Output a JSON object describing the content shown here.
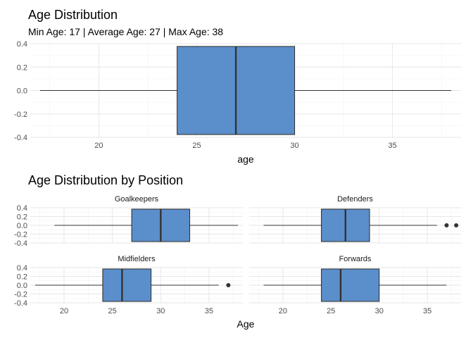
{
  "chart_data": [
    {
      "type": "boxplot",
      "title": "Age Distribution",
      "subtitle": "Min Age: 17 | Average Age: 27 | Max Age: 38",
      "xlabel": "age",
      "xlim": [
        16.5,
        38.5
      ],
      "ylim": [
        -0.4,
        0.4
      ],
      "xticks": [
        "20",
        "25",
        "30",
        "35"
      ],
      "yticks": [
        "0.4",
        "0.2",
        "0.0",
        "-0.2",
        "-0.4"
      ],
      "box": {
        "min": 17,
        "q1": 24,
        "median": 27,
        "q3": 30,
        "max": 38,
        "outliers": []
      },
      "fill": "#5B8FCB",
      "grid": true
    },
    {
      "type": "boxplot",
      "title": "Age Distribution by Position",
      "xlabel": "Age",
      "xlim": [
        16.5,
        38.5
      ],
      "ylim": [
        -0.4,
        0.4
      ],
      "xticks": [
        "20",
        "25",
        "30",
        "35"
      ],
      "yticks": [
        "0.4",
        "0.2",
        "0.0",
        "-0.2",
        "-0.4"
      ],
      "fill": "#5B8FCB",
      "grid": true,
      "facets": [
        {
          "name": "Goalkeepers",
          "min": 19,
          "q1": 27,
          "median": 30,
          "q3": 33,
          "max": 38,
          "outliers": []
        },
        {
          "name": "Defenders",
          "min": 18,
          "q1": 24,
          "median": 26.5,
          "q3": 29,
          "max": 36,
          "outliers": [
            37,
            38
          ]
        },
        {
          "name": "Midfielders",
          "min": 17,
          "q1": 24,
          "median": 26,
          "q3": 29,
          "max": 36,
          "outliers": [
            37
          ]
        },
        {
          "name": "Forwards",
          "min": 18,
          "q1": 24,
          "median": 26,
          "q3": 30,
          "max": 37,
          "outliers": []
        }
      ]
    }
  ]
}
